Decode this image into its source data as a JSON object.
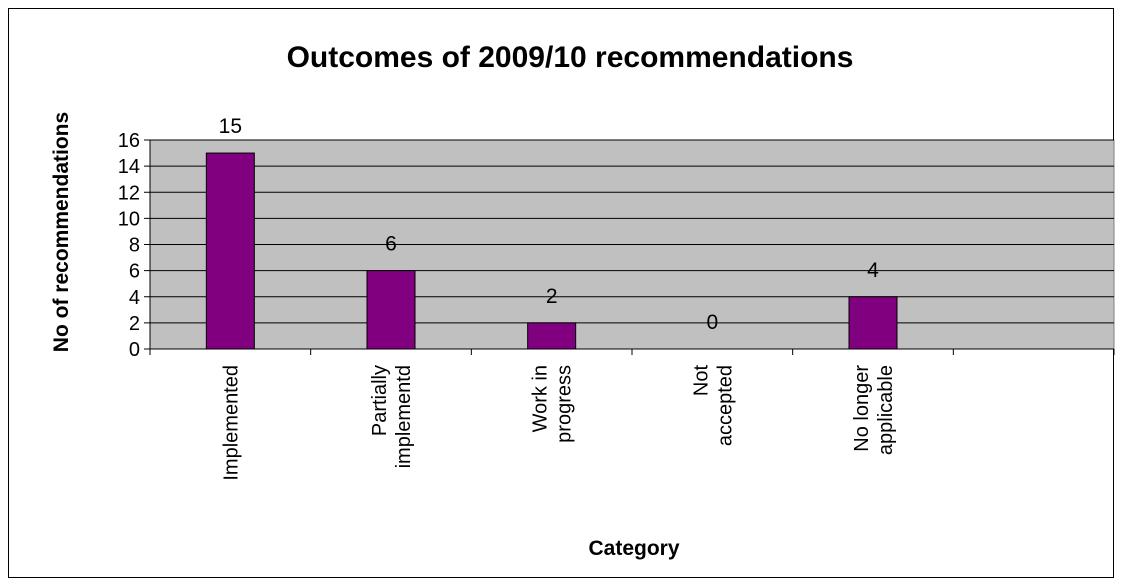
{
  "chart_data": {
    "type": "bar",
    "title": "Outcomes of 2009/10 recommendations",
    "xlabel": "Category",
    "ylabel": "No of recommendations",
    "categories": [
      [
        "Implemented"
      ],
      [
        "Partially",
        "implementd"
      ],
      [
        "Work in",
        "progress"
      ],
      [
        "Not",
        "accepted"
      ],
      [
        "No longer",
        "applicable"
      ],
      [
        ""
      ]
    ],
    "values": [
      15,
      6,
      2,
      0,
      4,
      null
    ],
    "data_labels": [
      "15",
      "6",
      "2",
      "0",
      "4",
      ""
    ],
    "ylim": [
      0,
      16
    ],
    "yticks": [
      0,
      2,
      4,
      6,
      8,
      10,
      12,
      14,
      16
    ],
    "grid": true,
    "legend": "none",
    "colors": {
      "bar": "#800080",
      "plot_background": "#c0c0c0",
      "gridline": "#000000"
    }
  }
}
